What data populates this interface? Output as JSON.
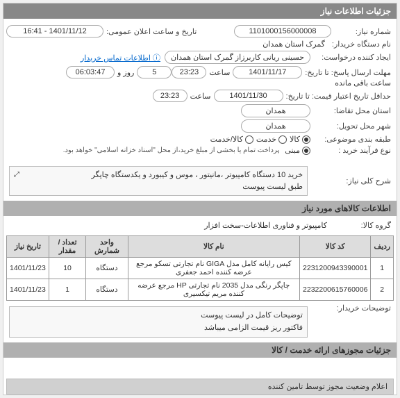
{
  "headers": {
    "main": "جزئیات اطلاعات نیاز",
    "goods": "اطلاعات کالاهای مورد نیاز",
    "licenses": "جزئیات مجوزهای ارائه خدمت / کالا"
  },
  "labels": {
    "req_no": "شماره نیاز:",
    "public_date": "تاریخ و ساعت اعلان عمومی:",
    "buyer_org": "نام دستگاه خریدار:",
    "creator": "ایجاد کننده درخواست:",
    "contact_link": "اطلاعات تماس خریدار",
    "reply_deadline": "مهلت ارسال پاسخ: تا تاریخ:",
    "time": "ساعت",
    "days_and": "روز و",
    "time_remaining": "ساعت باقی مانده",
    "min_expiry": "حداقل تاریخ اعتبار قیمت: تا تاریخ:",
    "req_province": "استان محل تقاضا:",
    "delivery_city": "شهر محل تحویل:",
    "category": "طبقه بندی موضوعی:",
    "goods_opt": "کالا",
    "service_opt": "خدمت",
    "goods_service_opt": "کالا/خدمت",
    "process_type": "نوع فرآیند خرید :",
    "process_main": "مبنی",
    "payment_note": "پرداخت تمام یا بخشی از مبلغ خرید،از محل \"اسناد خزانه اسلامی\" خواهد بود.",
    "general_title": "شرح کلی نیاز:",
    "goods_group": "گروه کالا:",
    "buyer_notes": "توضیحات خریدار:",
    "footer": "اعلام وضعیت مجوز توسط تامین کننده"
  },
  "values": {
    "req_no": "1101000156000008",
    "public_date": "1401/11/12 - 16:41",
    "buyer_org": "گمرک استان همدان",
    "creator": "حسینی ریانی کاربرزاز گمرک استان همدان",
    "reply_date": "1401/11/17",
    "reply_time": "23:23",
    "days_left": "5",
    "time_left": "06:03:47",
    "expiry_date": "1401/11/30",
    "expiry_time": "23:23",
    "province": "همدان",
    "city": "همدان",
    "general_title_line1": "خرید 10 دستگاه کامپیوتر ،مانیتور ، موس و کیبورد و یکدستگاه چاپگر",
    "general_title_line2": "طبق لیست پیوست",
    "goods_group": "کامپیوتر و فناوری اطلاعات-سخت افزار",
    "buyer_notes_line1": "توضیحات کامل در لیست پیوست",
    "buyer_notes_line2": "فاکتور ریز قیمت الزامی میباشد"
  },
  "table": {
    "columns": [
      "ردیف",
      "کد کالا",
      "نام کالا",
      "واحد شمارش",
      "تعداد / مقدار",
      "تاریخ نیاز"
    ],
    "rows": [
      [
        "1",
        "2231200943390001",
        "کیس رایانه کامل مدل GIGA نام تجارتی تسکو مرجع عرضه کننده احمد جعفری",
        "دستگاه",
        "10",
        "1401/11/23"
      ],
      [
        "2",
        "2232200615760006",
        "چاپگر رنگی مدل 2035 نام تجارتی HP مرجع عرضه کننده مریم تیکسیری",
        "دستگاه",
        "1",
        "1401/11/23"
      ]
    ]
  },
  "styling": {
    "header_bg": "#888888",
    "subheader_bg": "#b0b0b0",
    "field_border": "#aaaaaa",
    "table_border": "#999999",
    "table_header_bg": "#dddddd",
    "link_color": "#0066cc"
  }
}
